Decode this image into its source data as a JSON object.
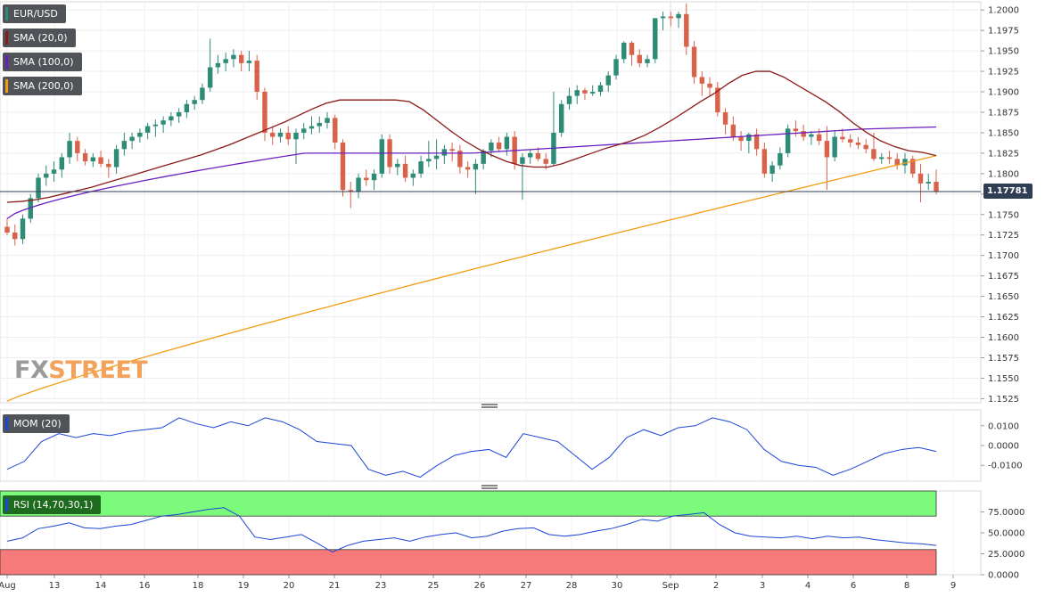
{
  "chart_data": {
    "type": "candlestick",
    "symbol": "EUR/USD",
    "current_price": "1.17781",
    "x_tick_labels": [
      "Aug",
      "13",
      "14",
      "16",
      "18",
      "19",
      "20",
      "21",
      "23",
      "25",
      "26",
      "27",
      "28",
      "30",
      "Sep",
      "2",
      "3",
      "4",
      "6",
      "8",
      "9"
    ],
    "y_ticks": [
      "1.2000",
      "1.1975",
      "1.1950",
      "1.1925",
      "1.1900",
      "1.1875",
      "1.1850",
      "1.1825",
      "1.1800",
      "1.1775",
      "1.1750",
      "1.1725",
      "1.1700",
      "1.1675",
      "1.1650",
      "1.1625",
      "1.1600",
      "1.1575",
      "1.1550",
      "1.1525"
    ],
    "ylim": [
      1.152,
      1.201
    ],
    "grid": true,
    "colors": {
      "up": "#2e8b76",
      "down": "#d9624a",
      "sma20": "#8b1a1a",
      "sma100": "#6a1fc0",
      "sma200": "#f39c12",
      "mom": "#1a45d6",
      "rsi": "#1a45d6",
      "price_line": "#2f3d55"
    },
    "candles": [
      [
        1.1735,
        1.1745,
        1.1725,
        1.1728
      ],
      [
        1.1728,
        1.1738,
        1.1712,
        1.172
      ],
      [
        1.172,
        1.175,
        1.1714,
        1.1745
      ],
      [
        1.1745,
        1.1775,
        1.174,
        1.177
      ],
      [
        1.177,
        1.18,
        1.1765,
        1.1795
      ],
      [
        1.1795,
        1.181,
        1.1785,
        1.18
      ],
      [
        1.18,
        1.1815,
        1.179,
        1.1805
      ],
      [
        1.1805,
        1.1825,
        1.1795,
        1.182
      ],
      [
        1.182,
        1.185,
        1.1812,
        1.184
      ],
      [
        1.184,
        1.1845,
        1.1815,
        1.1825
      ],
      [
        1.1825,
        1.183,
        1.181,
        1.1815
      ],
      [
        1.1815,
        1.1825,
        1.1808,
        1.182
      ],
      [
        1.182,
        1.1828,
        1.1808,
        1.1812
      ],
      [
        1.1812,
        1.1818,
        1.1795,
        1.1808
      ],
      [
        1.1808,
        1.1835,
        1.18,
        1.183
      ],
      [
        1.183,
        1.185,
        1.1822,
        1.184
      ],
      [
        1.184,
        1.185,
        1.183,
        1.1845
      ],
      [
        1.1845,
        1.1855,
        1.1838,
        1.185
      ],
      [
        1.185,
        1.1862,
        1.1842,
        1.1858
      ],
      [
        1.1858,
        1.1866,
        1.1845,
        1.186
      ],
      [
        1.186,
        1.187,
        1.185,
        1.1865
      ],
      [
        1.1865,
        1.1875,
        1.1858,
        1.187
      ],
      [
        1.187,
        1.188,
        1.1862,
        1.1875
      ],
      [
        1.1875,
        1.189,
        1.1868,
        1.1885
      ],
      [
        1.1885,
        1.1895,
        1.1878,
        1.189
      ],
      [
        1.189,
        1.191,
        1.1885,
        1.1905
      ],
      [
        1.1905,
        1.1965,
        1.19,
        1.193
      ],
      [
        1.193,
        1.1945,
        1.1922,
        1.1935
      ],
      [
        1.1935,
        1.1948,
        1.1925,
        1.194
      ],
      [
        1.194,
        1.1952,
        1.193,
        1.1945
      ],
      [
        1.1945,
        1.195,
        1.1925,
        1.1935
      ],
      [
        1.1935,
        1.195,
        1.1925,
        1.1938
      ],
      [
        1.1938,
        1.1945,
        1.189,
        1.19
      ],
      [
        1.19,
        1.1905,
        1.184,
        1.185
      ],
      [
        1.185,
        1.1858,
        1.1835,
        1.1845
      ],
      [
        1.1845,
        1.1855,
        1.1838,
        1.185
      ],
      [
        1.185,
        1.1858,
        1.1835,
        1.1842
      ],
      [
        1.1842,
        1.1855,
        1.1812,
        1.185
      ],
      [
        1.185,
        1.1862,
        1.1842,
        1.1855
      ],
      [
        1.1855,
        1.187,
        1.1848,
        1.1858
      ],
      [
        1.1858,
        1.187,
        1.185,
        1.1862
      ],
      [
        1.1862,
        1.1875,
        1.1855,
        1.1868
      ],
      [
        1.1868,
        1.1872,
        1.183,
        1.1838
      ],
      [
        1.1838,
        1.1842,
        1.1772,
        1.178
      ],
      [
        1.178,
        1.179,
        1.1758,
        1.1778
      ],
      [
        1.1778,
        1.18,
        1.177,
        1.1795
      ],
      [
        1.1795,
        1.1805,
        1.1785,
        1.1792
      ],
      [
        1.1792,
        1.1805,
        1.178,
        1.18
      ],
      [
        1.18,
        1.1848,
        1.1795,
        1.1842
      ],
      [
        1.1842,
        1.1848,
        1.18,
        1.1808
      ],
      [
        1.1808,
        1.1818,
        1.1798,
        1.1812
      ],
      [
        1.1812,
        1.1822,
        1.179,
        1.1795
      ],
      [
        1.1795,
        1.1805,
        1.1785,
        1.18
      ],
      [
        1.18,
        1.1822,
        1.1795,
        1.1815
      ],
      [
        1.1815,
        1.184,
        1.1808,
        1.1818
      ],
      [
        1.1818,
        1.1842,
        1.1805,
        1.1822
      ],
      [
        1.1822,
        1.1835,
        1.1812,
        1.183
      ],
      [
        1.183,
        1.1838,
        1.1815,
        1.1828
      ],
      [
        1.1828,
        1.1835,
        1.18,
        1.1808
      ],
      [
        1.1808,
        1.1815,
        1.1795,
        1.1805
      ],
      [
        1.1805,
        1.1818,
        1.1775,
        1.1812
      ],
      [
        1.1812,
        1.183,
        1.1805,
        1.1828
      ],
      [
        1.1828,
        1.1842,
        1.182,
        1.1838
      ],
      [
        1.1838,
        1.1845,
        1.1826,
        1.183
      ],
      [
        1.183,
        1.185,
        1.1822,
        1.1845
      ],
      [
        1.1845,
        1.1852,
        1.1805,
        1.1812
      ],
      [
        1.1812,
        1.1825,
        1.1768,
        1.182
      ],
      [
        1.182,
        1.183,
        1.1812,
        1.1825
      ],
      [
        1.1825,
        1.1832,
        1.1815,
        1.1818
      ],
      [
        1.1818,
        1.1825,
        1.1805,
        1.1812
      ],
      [
        1.1812,
        1.19,
        1.181,
        1.185
      ],
      [
        1.185,
        1.189,
        1.1845,
        1.1885
      ],
      [
        1.1885,
        1.1905,
        1.1878,
        1.1895
      ],
      [
        1.1895,
        1.1908,
        1.1885,
        1.1902
      ],
      [
        1.1902,
        1.1905,
        1.189,
        1.1898
      ],
      [
        1.1898,
        1.1908,
        1.1895,
        1.19
      ],
      [
        1.19,
        1.1912,
        1.1895,
        1.1908
      ],
      [
        1.1908,
        1.1925,
        1.19,
        1.192
      ],
      [
        1.192,
        1.1945,
        1.1915,
        1.194
      ],
      [
        1.194,
        1.1962,
        1.1935,
        1.196
      ],
      [
        1.196,
        1.1962,
        1.1932,
        1.1945
      ],
      [
        1.1945,
        1.1952,
        1.193,
        1.1935
      ],
      [
        1.1935,
        1.1945,
        1.193,
        1.194
      ],
      [
        1.194,
        1.199,
        1.1935,
        1.199
      ],
      [
        1.199,
        1.1998,
        1.1975,
        1.1992
      ],
      [
        1.1992,
        1.1998,
        1.198,
        1.199
      ],
      [
        1.199,
        1.1998,
        1.1978,
        1.1995
      ],
      [
        1.1995,
        1.2008,
        1.1945,
        1.1955
      ],
      [
        1.1955,
        1.1962,
        1.191,
        1.1918
      ],
      [
        1.1918,
        1.1925,
        1.1895,
        1.191
      ],
      [
        1.191,
        1.1918,
        1.1895,
        1.1905
      ],
      [
        1.1905,
        1.1912,
        1.187,
        1.1875
      ],
      [
        1.1875,
        1.188,
        1.1848,
        1.186
      ],
      [
        1.186,
        1.187,
        1.184,
        1.1845
      ],
      [
        1.1845,
        1.1852,
        1.1828,
        1.184
      ],
      [
        1.184,
        1.185,
        1.1825,
        1.1848
      ],
      [
        1.1848,
        1.1855,
        1.1822,
        1.183
      ],
      [
        1.183,
        1.1838,
        1.1795,
        1.18
      ],
      [
        1.18,
        1.1815,
        1.179,
        1.181
      ],
      [
        1.181,
        1.1832,
        1.1805,
        1.1825
      ],
      [
        1.1825,
        1.186,
        1.182,
        1.1855
      ],
      [
        1.1855,
        1.1865,
        1.1845,
        1.1852
      ],
      [
        1.1852,
        1.186,
        1.184,
        1.1845
      ],
      [
        1.1845,
        1.1852,
        1.1835,
        1.1848
      ],
      [
        1.1848,
        1.1855,
        1.1835,
        1.184
      ],
      [
        1.184,
        1.1858,
        1.178,
        1.182
      ],
      [
        1.182,
        1.1852,
        1.1815,
        1.1845
      ],
      [
        1.1845,
        1.1855,
        1.1838,
        1.1842
      ],
      [
        1.1842,
        1.1848,
        1.1832,
        1.1838
      ],
      [
        1.1838,
        1.1845,
        1.183,
        1.1835
      ],
      [
        1.1835,
        1.1842,
        1.1825,
        1.183
      ],
      [
        1.183,
        1.185,
        1.1815,
        1.1818
      ],
      [
        1.1818,
        1.1825,
        1.1812,
        1.182
      ],
      [
        1.182,
        1.1828,
        1.1812,
        1.1818
      ],
      [
        1.1818,
        1.1825,
        1.1805,
        1.181
      ],
      [
        1.181,
        1.1825,
        1.18,
        1.1818
      ],
      [
        1.1818,
        1.1822,
        1.1795,
        1.18
      ],
      [
        1.18,
        1.1812,
        1.1765,
        1.1788
      ],
      [
        1.1788,
        1.18,
        1.178,
        1.179
      ],
      [
        1.179,
        1.1805,
        1.1775,
        1.1778
      ]
    ],
    "sma20": [
      1.1765,
      1.1766,
      1.1768,
      1.1771,
      1.1775,
      1.1779,
      1.1783,
      1.1788,
      1.1793,
      1.1798,
      1.1803,
      1.1808,
      1.1813,
      1.1818,
      1.1823,
      1.1829,
      1.1835,
      1.1842,
      1.1849,
      1.1856,
      1.1863,
      1.1871,
      1.1879,
      1.1886,
      1.189,
      1.189,
      1.189,
      1.189,
      1.189,
      1.1888,
      1.1878,
      1.1865,
      1.1852,
      1.184,
      1.183,
      1.1822,
      1.1815,
      1.181,
      1.1808,
      1.1808,
      1.1812,
      1.1818,
      1.1824,
      1.183,
      1.1835,
      1.184,
      1.1847,
      1.1856,
      1.1866,
      1.1877,
      1.1888,
      1.1898,
      1.191,
      1.192,
      1.1925,
      1.1925,
      1.1918,
      1.1908,
      1.1898,
      1.1888,
      1.1876,
      1.1862,
      1.185,
      1.184,
      1.1833,
      1.1828,
      1.1826,
      1.1822
    ],
    "sma20_x": [
      0,
      2,
      4,
      6,
      8,
      10,
      12,
      14,
      16,
      18,
      20,
      22,
      24,
      26,
      28,
      30,
      32,
      34,
      36,
      38,
      40,
      42,
      44,
      46,
      48,
      50,
      52,
      54,
      56,
      58,
      60,
      62,
      64,
      66,
      68,
      70,
      72,
      74,
      76,
      78,
      80,
      82,
      84,
      86,
      88,
      90,
      92,
      94,
      96,
      98,
      100,
      102,
      104,
      106,
      108,
      110,
      112,
      114,
      116,
      118,
      120,
      122,
      124,
      126,
      128,
      130,
      132,
      134
    ],
    "mom": [
      -0.012,
      -0.008,
      0.002,
      0.006,
      0.004,
      0.006,
      0.005,
      0.007,
      0.008,
      0.009,
      0.014,
      0.011,
      0.009,
      0.012,
      0.01,
      0.014,
      0.012,
      0.008,
      0.002,
      0.001,
      0.0,
      -0.012,
      -0.015,
      -0.013,
      -0.016,
      -0.01,
      -0.005,
      -0.003,
      -0.002,
      -0.006,
      0.006,
      0.004,
      0.002,
      -0.005,
      -0.012,
      -0.006,
      0.004,
      0.008,
      0.005,
      0.009,
      0.01,
      0.014,
      0.012,
      0.008,
      -0.002,
      -0.008,
      -0.01,
      -0.011,
      -0.015,
      -0.012,
      -0.008,
      -0.004,
      -0.002,
      -0.001,
      -0.003
    ],
    "mom_ticks": [
      "0.0100",
      "0.0000",
      "-0.0100"
    ],
    "rsi": [
      40,
      44,
      55,
      58,
      62,
      56,
      55,
      58,
      60,
      65,
      70,
      72,
      75,
      78,
      80,
      70,
      45,
      42,
      45,
      48,
      38,
      27,
      35,
      40,
      42,
      44,
      40,
      45,
      48,
      50,
      44,
      46,
      52,
      55,
      56,
      48,
      46,
      48,
      52,
      55,
      60,
      66,
      64,
      70,
      72,
      74,
      60,
      50,
      46,
      45,
      44,
      46,
      43,
      46,
      44,
      45,
      42,
      40,
      38,
      37,
      35
    ],
    "rsi_ticks": [
      "75.0000",
      "50.0000",
      "25.0000",
      "0.0000"
    ],
    "rsi_bands": [
      70,
      30
    ]
  },
  "legends": {
    "main": [
      {
        "label": "EUR/USD",
        "color": "#2e8b76"
      },
      {
        "label": "SMA (20,0)",
        "color": "#8b1a1a"
      },
      {
        "label": "SMA (100,0)",
        "color": "#6a1fc0"
      },
      {
        "label": "SMA (200,0)",
        "color": "#f39c12"
      }
    ],
    "mom": {
      "label": "MOM (20)",
      "color": "#1a45d6"
    },
    "rsi": {
      "label": "RSI (14,70,30,1)",
      "color": "#1a45d6"
    }
  },
  "watermark": {
    "fx": "FX",
    "street": "STREET"
  }
}
